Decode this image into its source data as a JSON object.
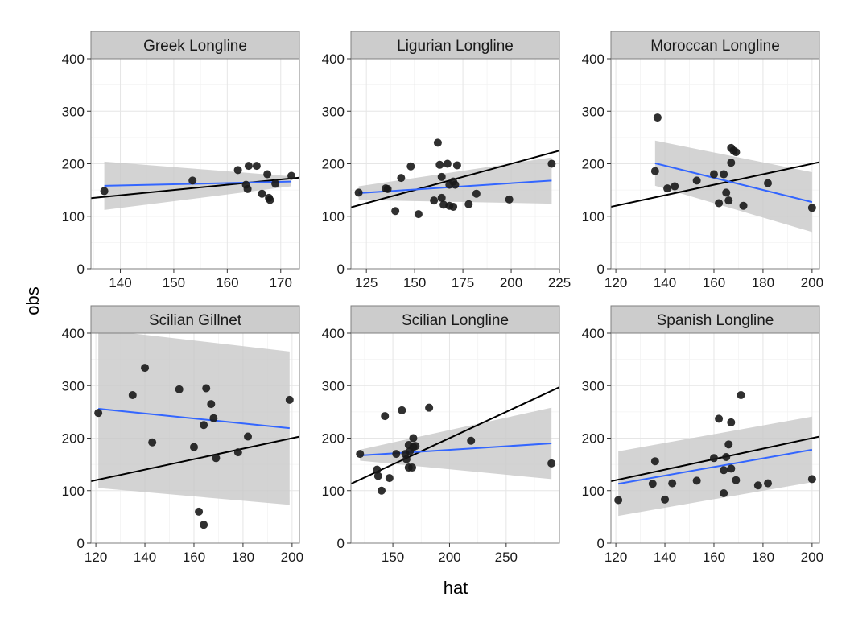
{
  "chart_data": {
    "type": "scatter",
    "xlabel": "hat",
    "ylabel": "obs",
    "grid": true,
    "facets": [
      {
        "name": "Greek Longline",
        "xlim": [
          134.5,
          173.5
        ],
        "ylim": [
          0,
          400
        ],
        "xticks": [
          140,
          150,
          160,
          170
        ],
        "yticks": [
          0,
          100,
          200,
          300,
          400
        ],
        "points": [
          [
            137,
            148
          ],
          [
            153.5,
            168
          ],
          [
            162,
            188
          ],
          [
            163.5,
            160
          ],
          [
            163.8,
            152
          ],
          [
            164,
            196
          ],
          [
            165.5,
            196
          ],
          [
            166.5,
            143
          ],
          [
            167.5,
            180
          ],
          [
            167.8,
            135
          ],
          [
            168,
            131
          ],
          [
            169,
            162
          ],
          [
            172,
            177
          ]
        ],
        "smooth": {
          "x": [
            137,
            172
          ],
          "y": [
            158,
            166
          ],
          "ci_lower": [
            112,
            157
          ],
          "ci_upper": [
            204,
            176
          ]
        },
        "identity": {
          "x": [
            134.5,
            173.5
          ],
          "y": [
            134.5,
            173.5
          ]
        }
      },
      {
        "name": "Ligurian Longline",
        "xlim": [
          117,
          225
        ],
        "ylim": [
          0,
          400
        ],
        "xticks": [
          125,
          150,
          175,
          200,
          225
        ],
        "yticks": [
          0,
          100,
          200,
          300,
          400
        ],
        "points": [
          [
            121,
            145
          ],
          [
            135,
            153
          ],
          [
            136,
            152
          ],
          [
            140,
            110
          ],
          [
            143,
            173
          ],
          [
            148,
            195
          ],
          [
            152,
            104
          ],
          [
            160,
            130
          ],
          [
            162,
            240
          ],
          [
            163,
            198
          ],
          [
            164,
            135
          ],
          [
            164,
            175
          ],
          [
            165,
            122
          ],
          [
            167,
            200
          ],
          [
            168,
            160
          ],
          [
            168,
            120
          ],
          [
            170,
            118
          ],
          [
            170,
            166
          ],
          [
            171,
            160
          ],
          [
            172,
            197
          ],
          [
            178,
            123
          ],
          [
            182,
            143
          ],
          [
            199,
            132
          ],
          [
            221,
            200
          ]
        ],
        "smooth": {
          "x": [
            121,
            221
          ],
          "y": [
            144,
            168
          ],
          "ci_lower": [
            131,
            124
          ],
          "ci_upper": [
            157,
            212
          ]
        },
        "identity": {
          "x": [
            117,
            225
          ],
          "y": [
            117,
            225
          ]
        }
      },
      {
        "name": "Moroccan Longline",
        "xlim": [
          118,
          203
        ],
        "ylim": [
          0,
          400
        ],
        "xticks": [
          120,
          140,
          160,
          180,
          200
        ],
        "yticks": [
          0,
          100,
          200,
          300,
          400
        ],
        "points": [
          [
            136,
            186
          ],
          [
            137,
            288
          ],
          [
            141,
            153
          ],
          [
            144,
            157
          ],
          [
            153,
            168
          ],
          [
            160,
            180
          ],
          [
            162,
            125
          ],
          [
            164,
            180
          ],
          [
            165,
            145
          ],
          [
            166,
            130
          ],
          [
            167,
            202
          ],
          [
            167,
            230
          ],
          [
            168,
            225
          ],
          [
            169,
            222
          ],
          [
            172,
            120
          ],
          [
            182,
            163
          ],
          [
            200,
            116
          ]
        ],
        "smooth": {
          "x": [
            136,
            200
          ],
          "y": [
            201,
            127
          ],
          "ci_lower": [
            158,
            70
          ],
          "ci_upper": [
            244,
            184
          ]
        },
        "identity": {
          "x": [
            118,
            203
          ],
          "y": [
            118,
            203
          ]
        }
      },
      {
        "name": "Scilian Gillnet",
        "xlim": [
          118,
          203
        ],
        "ylim": [
          0,
          400
        ],
        "xticks": [
          120,
          140,
          160,
          180,
          200
        ],
        "yticks": [
          0,
          100,
          200,
          300,
          400
        ],
        "points": [
          [
            121,
            248
          ],
          [
            135,
            282
          ],
          [
            140,
            334
          ],
          [
            143,
            192
          ],
          [
            154,
            293
          ],
          [
            160,
            183
          ],
          [
            162,
            60
          ],
          [
            164,
            225
          ],
          [
            164,
            35
          ],
          [
            165,
            295
          ],
          [
            167,
            265
          ],
          [
            168,
            238
          ],
          [
            169,
            162
          ],
          [
            178,
            173
          ],
          [
            182,
            203
          ],
          [
            199,
            273
          ]
        ],
        "smooth": {
          "x": [
            121,
            199
          ],
          "y": [
            256,
            219
          ],
          "ci_lower": [
            105,
            73
          ],
          "ci_upper": [
            407,
            365
          ]
        },
        "identity": {
          "x": [
            118,
            203
          ],
          "y": [
            118,
            203
          ]
        }
      },
      {
        "name": "Scilian Longline",
        "xlim": [
          113,
          297
        ],
        "ylim": [
          0,
          400
        ],
        "xticks": [
          150,
          200,
          250
        ],
        "yticks": [
          0,
          100,
          200,
          300,
          400
        ],
        "points": [
          [
            121,
            170
          ],
          [
            136,
            140
          ],
          [
            137,
            128
          ],
          [
            140,
            100
          ],
          [
            143,
            242
          ],
          [
            147,
            124
          ],
          [
            153,
            170
          ],
          [
            158,
            253
          ],
          [
            161,
            170
          ],
          [
            162,
            160
          ],
          [
            164,
            187
          ],
          [
            164,
            144
          ],
          [
            165,
            175
          ],
          [
            167,
            144
          ],
          [
            168,
            200
          ],
          [
            168,
            183
          ],
          [
            170,
            185
          ],
          [
            182,
            258
          ],
          [
            219,
            195
          ],
          [
            290,
            152
          ]
        ],
        "smooth": {
          "x": [
            121,
            290
          ],
          "y": [
            167,
            190
          ],
          "ci_lower": [
            157,
            122
          ],
          "ci_upper": [
            178,
            258
          ]
        },
        "identity": {
          "x": [
            113,
            297
          ],
          "y": [
            113,
            297
          ]
        }
      },
      {
        "name": "Spanish Longline",
        "xlim": [
          118,
          203
        ],
        "ylim": [
          0,
          400
        ],
        "xticks": [
          120,
          140,
          160,
          180,
          200
        ],
        "yticks": [
          0,
          100,
          200,
          300,
          400
        ],
        "points": [
          [
            121,
            82
          ],
          [
            135,
            113
          ],
          [
            136,
            156
          ],
          [
            140,
            83
          ],
          [
            143,
            114
          ],
          [
            153,
            119
          ],
          [
            160,
            162
          ],
          [
            162,
            237
          ],
          [
            164,
            95
          ],
          [
            164,
            139
          ],
          [
            165,
            164
          ],
          [
            166,
            188
          ],
          [
            167,
            142
          ],
          [
            167,
            230
          ],
          [
            169,
            120
          ],
          [
            171,
            282
          ],
          [
            178,
            110
          ],
          [
            182,
            114
          ],
          [
            200,
            122
          ]
        ],
        "smooth": {
          "x": [
            121,
            200
          ],
          "y": [
            113,
            178
          ],
          "ci_lower": [
            52,
            116
          ],
          "ci_upper": [
            175,
            241
          ]
        },
        "identity": {
          "x": [
            118,
            203
          ],
          "y": [
            118,
            203
          ]
        }
      }
    ]
  },
  "colors": {
    "points": "#1a1a1a",
    "smooth_line": "#3366ff",
    "confidence_band": "#c8c8c8",
    "identity_line": "#000000",
    "strip_fill": "#cccccc",
    "grid_major": "#e6e6e6",
    "grid_minor": "#f3f3f3"
  }
}
